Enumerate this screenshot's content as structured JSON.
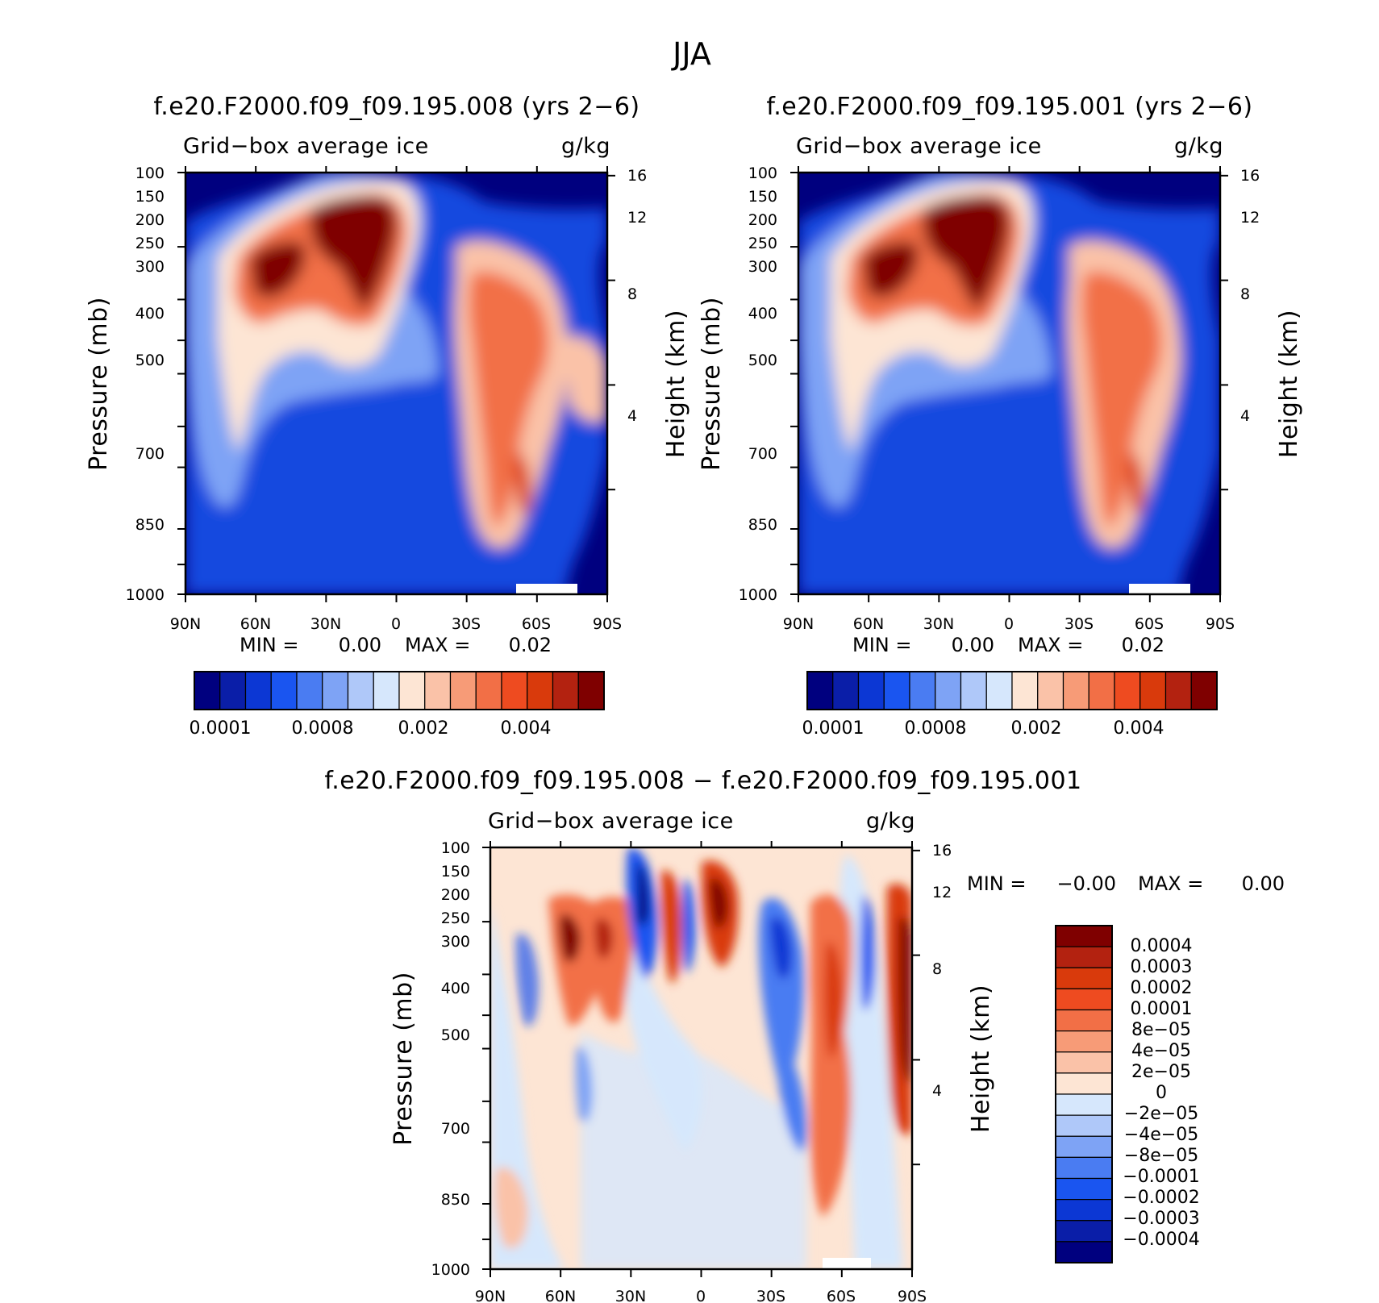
{
  "title": "JJA",
  "common": {
    "subtitle_left": "Grid−box average ice",
    "subtitle_right": "g/kg",
    "ylabel_left": "Pressure (mb)",
    "ylabel_right": "Height (km)",
    "pressure_ticks": [
      "100",
      "150",
      "200",
      "250",
      "300",
      "400",
      "500",
      "700",
      "850",
      "1000"
    ],
    "height_ticks": [
      "16",
      "12",
      "8",
      "4"
    ],
    "lat_ticks": [
      "90N",
      "60N",
      "30N",
      "0",
      "30S",
      "60S",
      "90S"
    ],
    "min_label": "MIN =",
    "max_label": "MAX ="
  },
  "panels": {
    "p1": {
      "title": "f.e20.F2000.f09_f09.195.008 (yrs 2−6)",
      "min": "0.00",
      "max": "0.02"
    },
    "p2": {
      "title": "f.e20.F2000.f09_f09.195.001 (yrs 2−6)",
      "min": "0.00",
      "max": "0.02"
    },
    "p3": {
      "title": "f.e20.F2000.f09_f09.195.008 − f.e20.F2000.f09_f09.195.001",
      "min": "−0.00",
      "max": "0.00"
    }
  },
  "colorbar_main": {
    "labels": [
      "0.0001",
      "0.0008",
      "0.002",
      "0.004"
    ],
    "colors": [
      "#00007f",
      "#0a1ea8",
      "#0c37d4",
      "#1a55f0",
      "#4a7cf2",
      "#7ea3f5",
      "#afc8f9",
      "#d6e7fc",
      "#fde5d4",
      "#fac2a8",
      "#f79b77",
      "#f26f46",
      "#ee4b20",
      "#d93a0c",
      "#b32210",
      "#7f0000"
    ]
  },
  "colorbar_diff": {
    "labels": [
      "0.0004",
      "0.0003",
      "0.0002",
      "0.0001",
      "8e−05",
      "4e−05",
      "2e−05",
      "0",
      "−2e−05",
      "−4e−05",
      "−8e−05",
      "−0.0001",
      "−0.0002",
      "−0.0003",
      "−0.0004"
    ],
    "colors": [
      "#7f0000",
      "#b32210",
      "#d93a0c",
      "#ee4b20",
      "#f26f46",
      "#f79b77",
      "#fac2a8",
      "#fde5d4",
      "#d6e7fc",
      "#afc8f9",
      "#7ea3f5",
      "#4a7cf2",
      "#1a55f0",
      "#0c37d4",
      "#0a1ea8",
      "#00007f"
    ]
  },
  "chart_data": [
    {
      "type": "heatmap",
      "title": "f.e20.F2000.f09_f09.195.008 (yrs 2−6)",
      "ylabel": "Pressure (mb)",
      "y2label": "Height (km)",
      "xlim": [
        "90N",
        "90S"
      ],
      "ylim": [
        1000,
        100
      ],
      "yscale": "log",
      "levels": [
        0.0001,
        0.0008,
        0.002,
        0.004
      ],
      "min": 0.0,
      "max": 0.02,
      "features": [
        {
          "lat": 45,
          "pressure": 340,
          "value": 0.006
        },
        {
          "lat": 15,
          "pressure": 250,
          "value": 0.006
        },
        {
          "lat": -40,
          "pressure": 400,
          "value": 0.003
        },
        {
          "lat": -58,
          "pressure": 750,
          "value": 0.004
        }
      ]
    },
    {
      "type": "heatmap",
      "title": "f.e20.F2000.f09_f09.195.001 (yrs 2−6)",
      "ylabel": "Pressure (mb)",
      "y2label": "Height (km)",
      "xlim": [
        "90N",
        "90S"
      ],
      "ylim": [
        1000,
        100
      ],
      "yscale": "log",
      "levels": [
        0.0001,
        0.0008,
        0.002,
        0.004
      ],
      "min": 0.0,
      "max": 0.02,
      "features": [
        {
          "lat": 45,
          "pressure": 340,
          "value": 0.006
        },
        {
          "lat": 15,
          "pressure": 250,
          "value": 0.006
        },
        {
          "lat": -40,
          "pressure": 400,
          "value": 0.003
        },
        {
          "lat": -58,
          "pressure": 750,
          "value": 0.004
        }
      ]
    },
    {
      "type": "heatmap",
      "title": "f.e20.F2000.f09_f09.195.008 − f.e20.F2000.f09_f09.195.001",
      "ylabel": "Pressure (mb)",
      "y2label": "Height (km)",
      "xlim": [
        "90N",
        "90S"
      ],
      "ylim": [
        1000,
        100
      ],
      "yscale": "log",
      "levels": [
        -0.0004,
        -0.0003,
        -0.0002,
        -0.0001,
        -8e-05,
        -4e-05,
        -2e-05,
        0,
        2e-05,
        4e-05,
        8e-05,
        0.0001,
        0.0002,
        0.0003,
        0.0004
      ],
      "min": -0.0,
      "max": 0.0,
      "features": [
        {
          "lat": 50,
          "pressure": 300,
          "value": 0.0004
        },
        {
          "lat": 23,
          "pressure": 250,
          "value": -0.0004
        },
        {
          "lat": -5,
          "pressure": 250,
          "value": 0.0004
        },
        {
          "lat": -30,
          "pressure": 400,
          "value": -0.0003
        },
        {
          "lat": -58,
          "pressure": 600,
          "value": 0.0003
        },
        {
          "lat": -88,
          "pressure": 350,
          "value": 0.0004
        }
      ]
    }
  ]
}
